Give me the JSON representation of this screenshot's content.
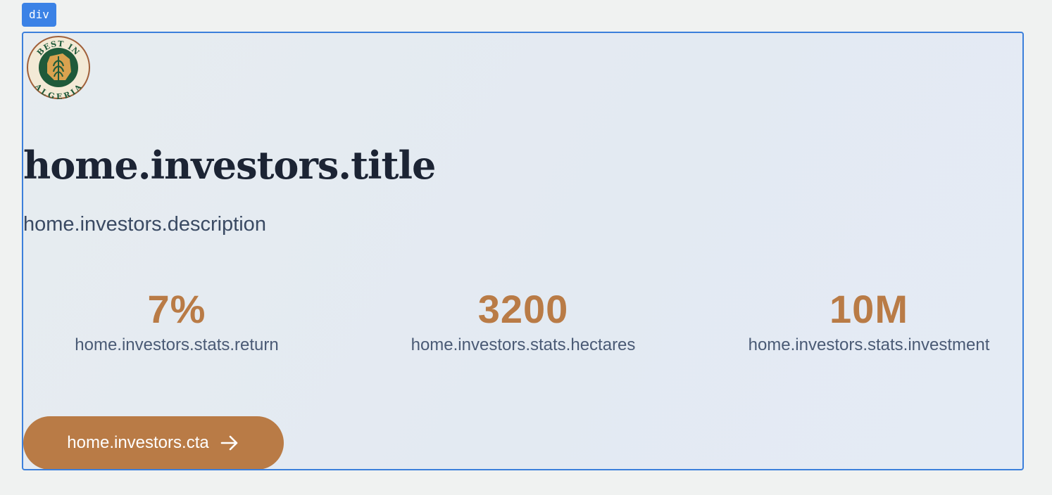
{
  "inspector": {
    "tag_label": "div"
  },
  "logo": {
    "top_text": "BEST IN",
    "bottom_text": "ALGERIA",
    "icon": "wheat-map-seal-icon"
  },
  "investors": {
    "title": "home.investors.title",
    "description": "home.investors.description",
    "stats": [
      {
        "value": "7%",
        "label": "home.investors.stats.return"
      },
      {
        "value": "3200",
        "label": "home.investors.stats.hectares"
      },
      {
        "value": "10M",
        "label": "home.investors.stats.investment"
      }
    ],
    "cta_label": "home.investors.cta",
    "cta_icon": "arrow-right-icon"
  },
  "colors": {
    "accent": "#b97b46",
    "title": "#1c2434",
    "highlight_border": "#3b7fdb",
    "badge": "#3b82e6"
  }
}
